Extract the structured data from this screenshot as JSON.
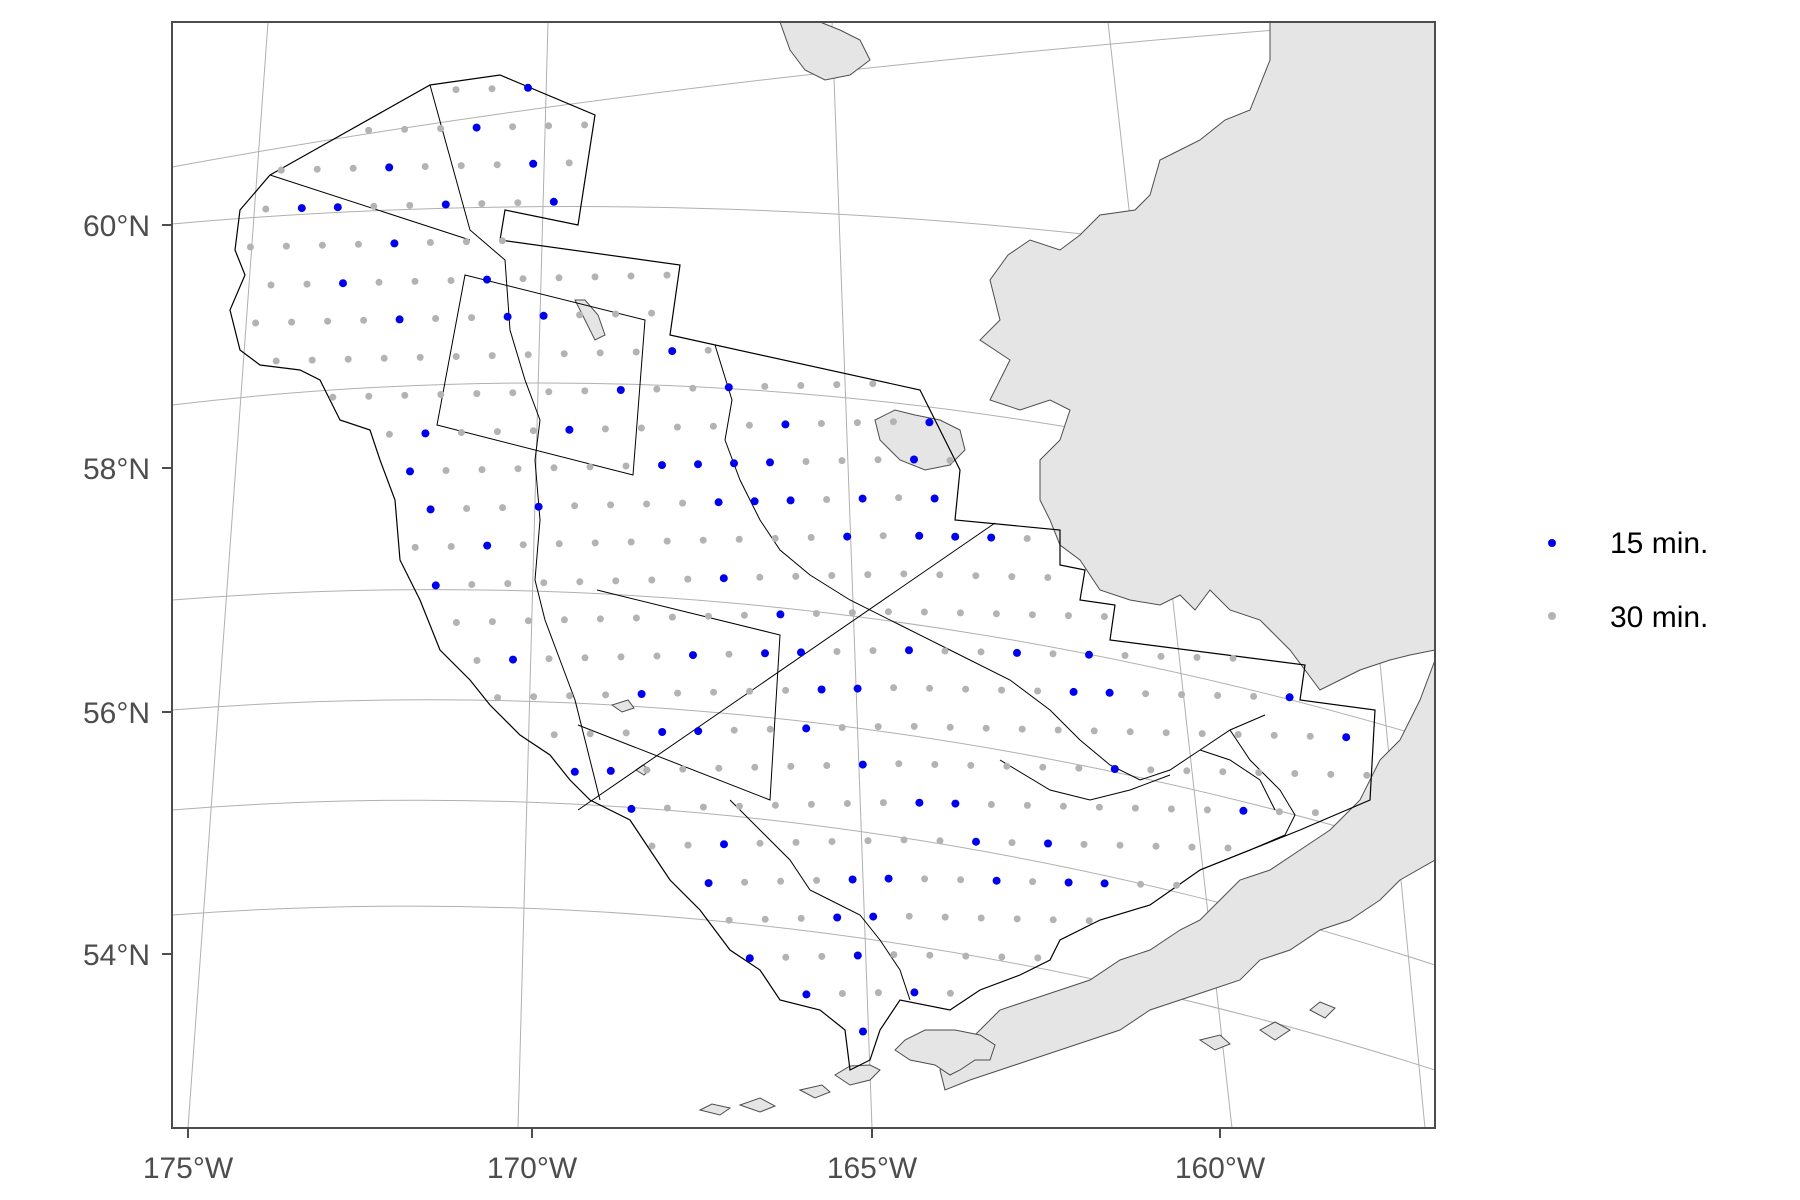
{
  "map": {
    "y_axis_labels": [
      "60°N",
      "58°N",
      "56°N",
      "54°N"
    ],
    "x_axis_labels": [
      "175°W",
      "170°W",
      "165°W",
      "160°W"
    ],
    "legend": [
      {
        "label": "15 min.",
        "color": "#0000ee"
      },
      {
        "label": "30 min.",
        "color": "#b3b3b3"
      }
    ],
    "colors": {
      "land": "#e5e5e5",
      "land_outline": "#4d4d4d",
      "graticule": "#b0b0b0",
      "panel_border": "#4d4d4d",
      "survey_lines": "#000000"
    },
    "layers": [
      "graticule",
      "land",
      "survey-region-outline",
      "stratum-boundaries",
      "stations"
    ]
  }
}
